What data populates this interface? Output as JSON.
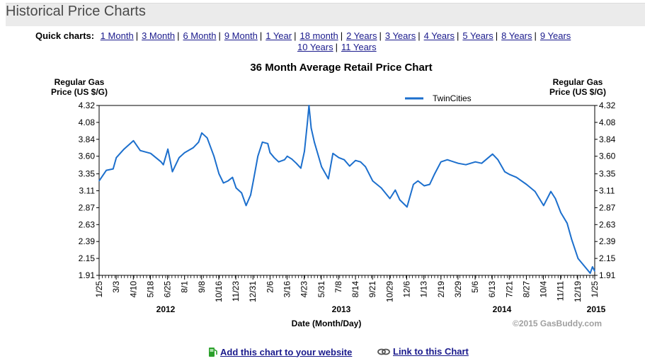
{
  "page": {
    "title": "Historical Price Charts"
  },
  "quick_charts": {
    "label": "Quick charts:",
    "links": [
      "1 Month",
      "3 Month",
      "6 Month",
      "9 Month",
      "1 Year",
      "18 month",
      "2 Years",
      "3 Years",
      "4 Years",
      "5 Years",
      "8 Years",
      "9 Years",
      "10 Years",
      "11 Years"
    ]
  },
  "chart_data": {
    "type": "line",
    "title": "36 Month Average Retail Price Chart",
    "ylabel": "Regular Gas Price (US $/G)",
    "ylabel_left": [
      "Regular Gas",
      "Price (US $/G)"
    ],
    "ylabel_right": [
      "Regular Gas",
      "Price (US $/G)"
    ],
    "xlabel": "Date (Month/Day)",
    "ylim": [
      1.91,
      4.32
    ],
    "yticks": [
      "4.32",
      "4.08",
      "3.84",
      "3.60",
      "3.35",
      "3.11",
      "2.87",
      "2.63",
      "2.39",
      "2.15",
      "1.91"
    ],
    "x_tick_labels": [
      "1/25",
      "3/3",
      "4/10",
      "5/18",
      "6/25",
      "8/1",
      "9/8",
      "10/16",
      "11/23",
      "12/31",
      "2/6",
      "3/16",
      "4/23",
      "5/31",
      "7/8",
      "8/14",
      "9/21",
      "10/29",
      "12/6",
      "1/13",
      "2/19",
      "3/29",
      "5/6",
      "6/13",
      "7/21",
      "8/27",
      "10/4",
      "11/11",
      "12/19",
      "1/25"
    ],
    "years": [
      "2012",
      "2013",
      "2014",
      "2015"
    ],
    "legend": "top-center",
    "grid": false,
    "series": [
      {
        "name": "TwinCities",
        "color": "#1c6fcd",
        "x": [
          "2012-01-25",
          "2012-02-10",
          "2012-02-25",
          "2012-03-03",
          "2012-03-20",
          "2012-04-10",
          "2012-04-25",
          "2012-05-18",
          "2012-06-10",
          "2012-06-15",
          "2012-06-25",
          "2012-07-05",
          "2012-07-20",
          "2012-08-01",
          "2012-08-20",
          "2012-09-01",
          "2012-09-08",
          "2012-09-20",
          "2012-10-05",
          "2012-10-16",
          "2012-10-26",
          "2012-11-05",
          "2012-11-15",
          "2012-11-23",
          "2012-12-05",
          "2012-12-15",
          "2012-12-25",
          "2012-12-31",
          "2013-01-10",
          "2013-01-20",
          "2013-02-01",
          "2013-02-06",
          "2013-02-15",
          "2013-02-25",
          "2013-03-10",
          "2013-03-16",
          "2013-03-26",
          "2013-04-05",
          "2013-04-15",
          "2013-04-23",
          "2013-04-30",
          "2013-05-03",
          "2013-05-08",
          "2013-05-15",
          "2013-05-31",
          "2013-06-15",
          "2013-06-25",
          "2013-07-08",
          "2013-07-20",
          "2013-08-01",
          "2013-08-14",
          "2013-08-25",
          "2013-09-05",
          "2013-09-21",
          "2013-10-10",
          "2013-10-29",
          "2013-11-10",
          "2013-11-20",
          "2013-12-06",
          "2013-12-20",
          "2013-12-30",
          "2014-01-13",
          "2014-01-25",
          "2014-02-05",
          "2014-02-19",
          "2014-03-05",
          "2014-03-29",
          "2014-04-15",
          "2014-05-06",
          "2014-05-20",
          "2014-06-13",
          "2014-06-25",
          "2014-07-10",
          "2014-07-21",
          "2014-08-05",
          "2014-08-27",
          "2014-09-15",
          "2014-10-04",
          "2014-10-20",
          "2014-10-30",
          "2014-11-11",
          "2014-11-25",
          "2014-12-05",
          "2014-12-19",
          "2015-01-01",
          "2015-01-10",
          "2015-01-15",
          "2015-01-20",
          "2015-01-25"
        ],
        "values": [
          3.25,
          3.4,
          3.42,
          3.58,
          3.7,
          3.82,
          3.68,
          3.64,
          3.52,
          3.48,
          3.7,
          3.38,
          3.58,
          3.65,
          3.72,
          3.8,
          3.93,
          3.86,
          3.6,
          3.35,
          3.22,
          3.25,
          3.3,
          3.15,
          3.08,
          2.9,
          3.05,
          3.25,
          3.6,
          3.8,
          3.78,
          3.65,
          3.58,
          3.52,
          3.55,
          3.6,
          3.56,
          3.5,
          3.43,
          3.67,
          4.1,
          4.32,
          4.0,
          3.8,
          3.45,
          3.28,
          3.64,
          3.58,
          3.55,
          3.46,
          3.54,
          3.52,
          3.45,
          3.25,
          3.15,
          3.0,
          3.12,
          2.98,
          2.88,
          3.2,
          3.25,
          3.18,
          3.2,
          3.35,
          3.52,
          3.55,
          3.5,
          3.48,
          3.52,
          3.5,
          3.63,
          3.55,
          3.38,
          3.34,
          3.3,
          3.2,
          3.1,
          2.9,
          3.1,
          3.0,
          2.8,
          2.65,
          2.42,
          2.15,
          2.05,
          1.98,
          1.94,
          2.03,
          1.97
        ]
      }
    ],
    "watermark": "©2015 GasBuddy.com"
  },
  "footer": {
    "add_chart": "Add this chart to your website",
    "link_chart": "Link to this Chart"
  }
}
